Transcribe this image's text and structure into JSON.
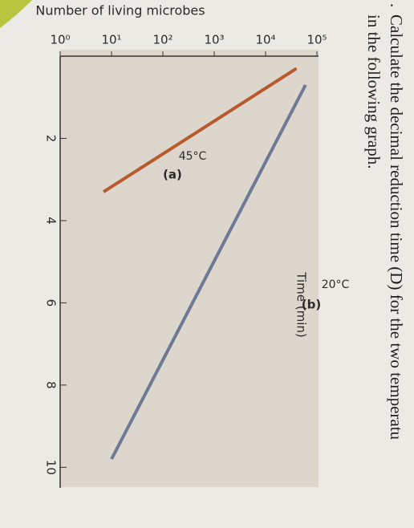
{
  "question": {
    "number": ".",
    "lines": [
      "Calculate the decimal reduction time (D) for the two temperatu",
      "in the following graph."
    ]
  },
  "chart_data": {
    "type": "line",
    "ylabel": "Number of living microbes",
    "xlabel": "Time (min)",
    "log_y": true,
    "xlim": [
      0,
      10.5
    ],
    "xticks": [
      2,
      4,
      6,
      8,
      10
    ],
    "ylim": [
      1,
      100000
    ],
    "yticks": [
      {
        "value": 1,
        "label": "10⁰"
      },
      {
        "value": 10,
        "label": "10¹"
      },
      {
        "value": 100,
        "label": "10²"
      },
      {
        "value": 1000,
        "label": "10³"
      },
      {
        "value": 10000,
        "label": "10⁴"
      },
      {
        "value": 100000,
        "label": "10⁵"
      }
    ],
    "series": [
      {
        "name": "45°C",
        "tag": "(a)",
        "color": "#b85a2e",
        "x": [
          0.3,
          3.3
        ],
        "values": [
          40000,
          7
        ]
      },
      {
        "name": "20°C",
        "tag": "(b)",
        "color": "#6d7a95",
        "x": [
          0.7,
          9.8
        ],
        "values": [
          60000,
          10
        ]
      }
    ]
  }
}
